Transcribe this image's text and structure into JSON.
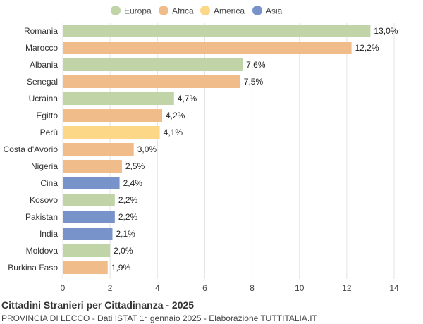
{
  "chart_data": {
    "type": "bar",
    "orientation": "horizontal",
    "title": "Cittadini Stranieri per Cittadinanza - 2025",
    "subtitle": "PROVINCIA DI LECCO - Dati ISTAT 1° gennaio 2025 - Elaborazione TUTTITALIA.IT",
    "xlim": [
      0,
      14
    ],
    "xticks": [
      0,
      2,
      4,
      6,
      8,
      10,
      12,
      14
    ],
    "grid": true,
    "legend_position": "top",
    "legend": [
      {
        "name": "Europa",
        "color": "#c0d4a8"
      },
      {
        "name": "Africa",
        "color": "#f0bc8a"
      },
      {
        "name": "America",
        "color": "#fdd788"
      },
      {
        "name": "Asia",
        "color": "#7893ca"
      }
    ],
    "categories": [
      "Romania",
      "Marocco",
      "Albania",
      "Senegal",
      "Ucraina",
      "Egitto",
      "Perù",
      "Costa d'Avorio",
      "Nigeria",
      "Cina",
      "Kosovo",
      "Pakistan",
      "India",
      "Moldova",
      "Burkina Faso"
    ],
    "values": [
      13.0,
      12.2,
      7.6,
      7.5,
      4.7,
      4.2,
      4.1,
      3.0,
      2.5,
      2.4,
      2.2,
      2.2,
      2.1,
      2.0,
      1.9
    ],
    "value_labels": [
      "13,0%",
      "12,2%",
      "7,6%",
      "7,5%",
      "4,7%",
      "4,2%",
      "4,1%",
      "3,0%",
      "2,5%",
      "2,4%",
      "2,2%",
      "2,2%",
      "2,1%",
      "2,0%",
      "1,9%"
    ],
    "groups": [
      "Europa",
      "Africa",
      "Europa",
      "Africa",
      "Europa",
      "Africa",
      "America",
      "Africa",
      "Africa",
      "Asia",
      "Europa",
      "Asia",
      "Asia",
      "Europa",
      "Africa"
    ]
  }
}
